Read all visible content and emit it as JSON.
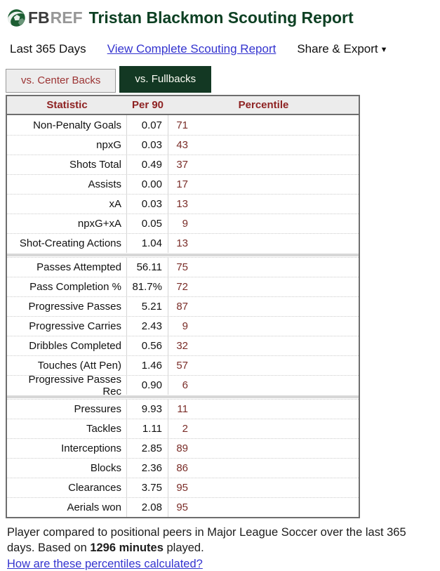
{
  "header": {
    "logo_fb": "FB",
    "logo_ref": "REF",
    "title": "Tristan Blackmon Scouting Report"
  },
  "subnav": {
    "period_label": "Last 365 Days",
    "complete_report_link": "View Complete Scouting Report",
    "share_export_label": "Share & Export",
    "caret": "▼"
  },
  "tabs": [
    {
      "label": "vs. Center Backs",
      "active": false
    },
    {
      "label": "vs. Fullbacks",
      "active": true
    }
  ],
  "table": {
    "columns": {
      "statistic": "Statistic",
      "per90": "Per 90",
      "percentile": "Percentile"
    },
    "sections": [
      {
        "rows": [
          {
            "statistic": "Non-Penalty Goals",
            "per90": "0.07",
            "percentile": 71,
            "bar_color": "#7aae74"
          },
          {
            "statistic": "npxG",
            "per90": "0.03",
            "percentile": 43,
            "bar_color": "#a89c9b"
          },
          {
            "statistic": "Shots Total",
            "per90": "0.49",
            "percentile": 37,
            "bar_color": "#ad9191"
          },
          {
            "statistic": "Assists",
            "per90": "0.00",
            "percentile": 17,
            "bar_color": "#b05b56"
          },
          {
            "statistic": "xA",
            "per90": "0.03",
            "percentile": 13,
            "bar_color": "#b14f4c"
          },
          {
            "statistic": "npxG+xA",
            "per90": "0.05",
            "percentile": 9,
            "bar_color": "#ab4642"
          },
          {
            "statistic": "Shot-Creating Actions",
            "per90": "1.04",
            "percentile": 13,
            "bar_color": "#b14f4c"
          }
        ]
      },
      {
        "rows": [
          {
            "statistic": "Passes Attempted",
            "per90": "56.11",
            "percentile": 75,
            "bar_color": "#76ae6e"
          },
          {
            "statistic": "Pass Completion %",
            "per90": "81.7%",
            "percentile": 72,
            "bar_color": "#7cac78"
          },
          {
            "statistic": "Progressive Passes",
            "per90": "5.21",
            "percentile": 87,
            "bar_color": "#55ad52"
          },
          {
            "statistic": "Progressive Carries",
            "per90": "2.43",
            "percentile": 9,
            "bar_color": "#ab4642"
          },
          {
            "statistic": "Dribbles Completed",
            "per90": "0.56",
            "percentile": 32,
            "bar_color": "#ae8d8d"
          },
          {
            "statistic": "Touches (Att Pen)",
            "per90": "1.46",
            "percentile": 57,
            "bar_color": "#9eb29b"
          },
          {
            "statistic": "Progressive Passes Rec",
            "per90": "0.90",
            "percentile": 6,
            "bar_color": "#a83f3d"
          }
        ]
      },
      {
        "rows": [
          {
            "statistic": "Pressures",
            "per90": "9.93",
            "percentile": 11,
            "bar_color": "#ad4845"
          },
          {
            "statistic": "Tackles",
            "per90": "1.11",
            "percentile": 2,
            "bar_color": "#a03230"
          },
          {
            "statistic": "Interceptions",
            "per90": "2.85",
            "percentile": 89,
            "bar_color": "#4cad4b"
          },
          {
            "statistic": "Blocks",
            "per90": "2.36",
            "percentile": 86,
            "bar_color": "#5bae59"
          },
          {
            "statistic": "Clearances",
            "per90": "3.75",
            "percentile": 95,
            "bar_color": "#3fac3e"
          },
          {
            "statistic": "Aerials won",
            "per90": "2.08",
            "percentile": 95,
            "bar_color": "#3fac3e"
          }
        ]
      }
    ]
  },
  "footer": {
    "text_before": "Player compared to positional peers in Major League Soccer over the last 365 days. Based on ",
    "minutes_bold": "1296 minutes",
    "text_after": " played.",
    "clipped_link": "How are these percentiles calculated?"
  },
  "colors": {
    "brand_green": "#0d4023",
    "active_tab_green": "#133823",
    "table_header_red": "#8e2222",
    "percentile_number_red": "#7a2d28",
    "link_blue": "#3434cf",
    "inactive_tab_bg": "#ededed"
  }
}
